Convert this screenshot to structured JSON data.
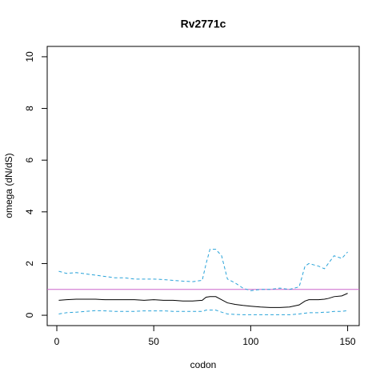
{
  "chart_data": {
    "type": "line",
    "title": "Rv2771c",
    "x_label": "codon",
    "y_label": "omega (dN/dS)",
    "x": [
      1,
      5,
      10,
      15,
      20,
      25,
      30,
      35,
      40,
      45,
      50,
      55,
      60,
      65,
      70,
      75,
      77,
      79,
      82,
      85,
      88,
      92,
      96,
      100,
      105,
      110,
      115,
      120,
      125,
      128,
      130,
      135,
      138,
      140,
      143,
      147,
      150
    ],
    "series": [
      {
        "color": "#000000",
        "dashed": false,
        "values": [
          0.58,
          0.6,
          0.62,
          0.62,
          0.62,
          0.6,
          0.6,
          0.6,
          0.6,
          0.58,
          0.6,
          0.58,
          0.58,
          0.55,
          0.55,
          0.58,
          0.7,
          0.72,
          0.72,
          0.6,
          0.48,
          0.42,
          0.38,
          0.35,
          0.32,
          0.3,
          0.3,
          0.32,
          0.4,
          0.55,
          0.6,
          0.6,
          0.62,
          0.65,
          0.72,
          0.75,
          0.85
        ]
      },
      {
        "color": "#29a3d9",
        "dashed": true,
        "values": [
          1.7,
          1.62,
          1.65,
          1.6,
          1.55,
          1.5,
          1.45,
          1.45,
          1.4,
          1.4,
          1.4,
          1.38,
          1.35,
          1.32,
          1.3,
          1.35,
          2.0,
          2.55,
          2.55,
          2.3,
          1.4,
          1.25,
          1.05,
          0.95,
          1.0,
          1.0,
          1.05,
          1.0,
          1.1,
          1.9,
          2.0,
          1.9,
          1.8,
          2.0,
          2.3,
          2.2,
          2.45
        ]
      },
      {
        "color": "#29a3d9",
        "dashed": true,
        "values": [
          0.05,
          0.1,
          0.12,
          0.15,
          0.18,
          0.17,
          0.15,
          0.15,
          0.15,
          0.17,
          0.17,
          0.17,
          0.15,
          0.15,
          0.15,
          0.15,
          0.2,
          0.2,
          0.2,
          0.12,
          0.05,
          0.03,
          0.02,
          0.02,
          0.02,
          0.02,
          0.02,
          0.02,
          0.05,
          0.08,
          0.1,
          0.1,
          0.12,
          0.12,
          0.15,
          0.15,
          0.18
        ]
      }
    ],
    "hline": {
      "value": 1,
      "color": "#cc66cc"
    },
    "xlim": [
      -4.96,
      155.96
    ],
    "xticks": [
      0,
      50,
      100,
      150
    ],
    "ylim": [
      -0.4,
      10.4
    ],
    "yticks": [
      0,
      2,
      4,
      6,
      8,
      10
    ]
  }
}
